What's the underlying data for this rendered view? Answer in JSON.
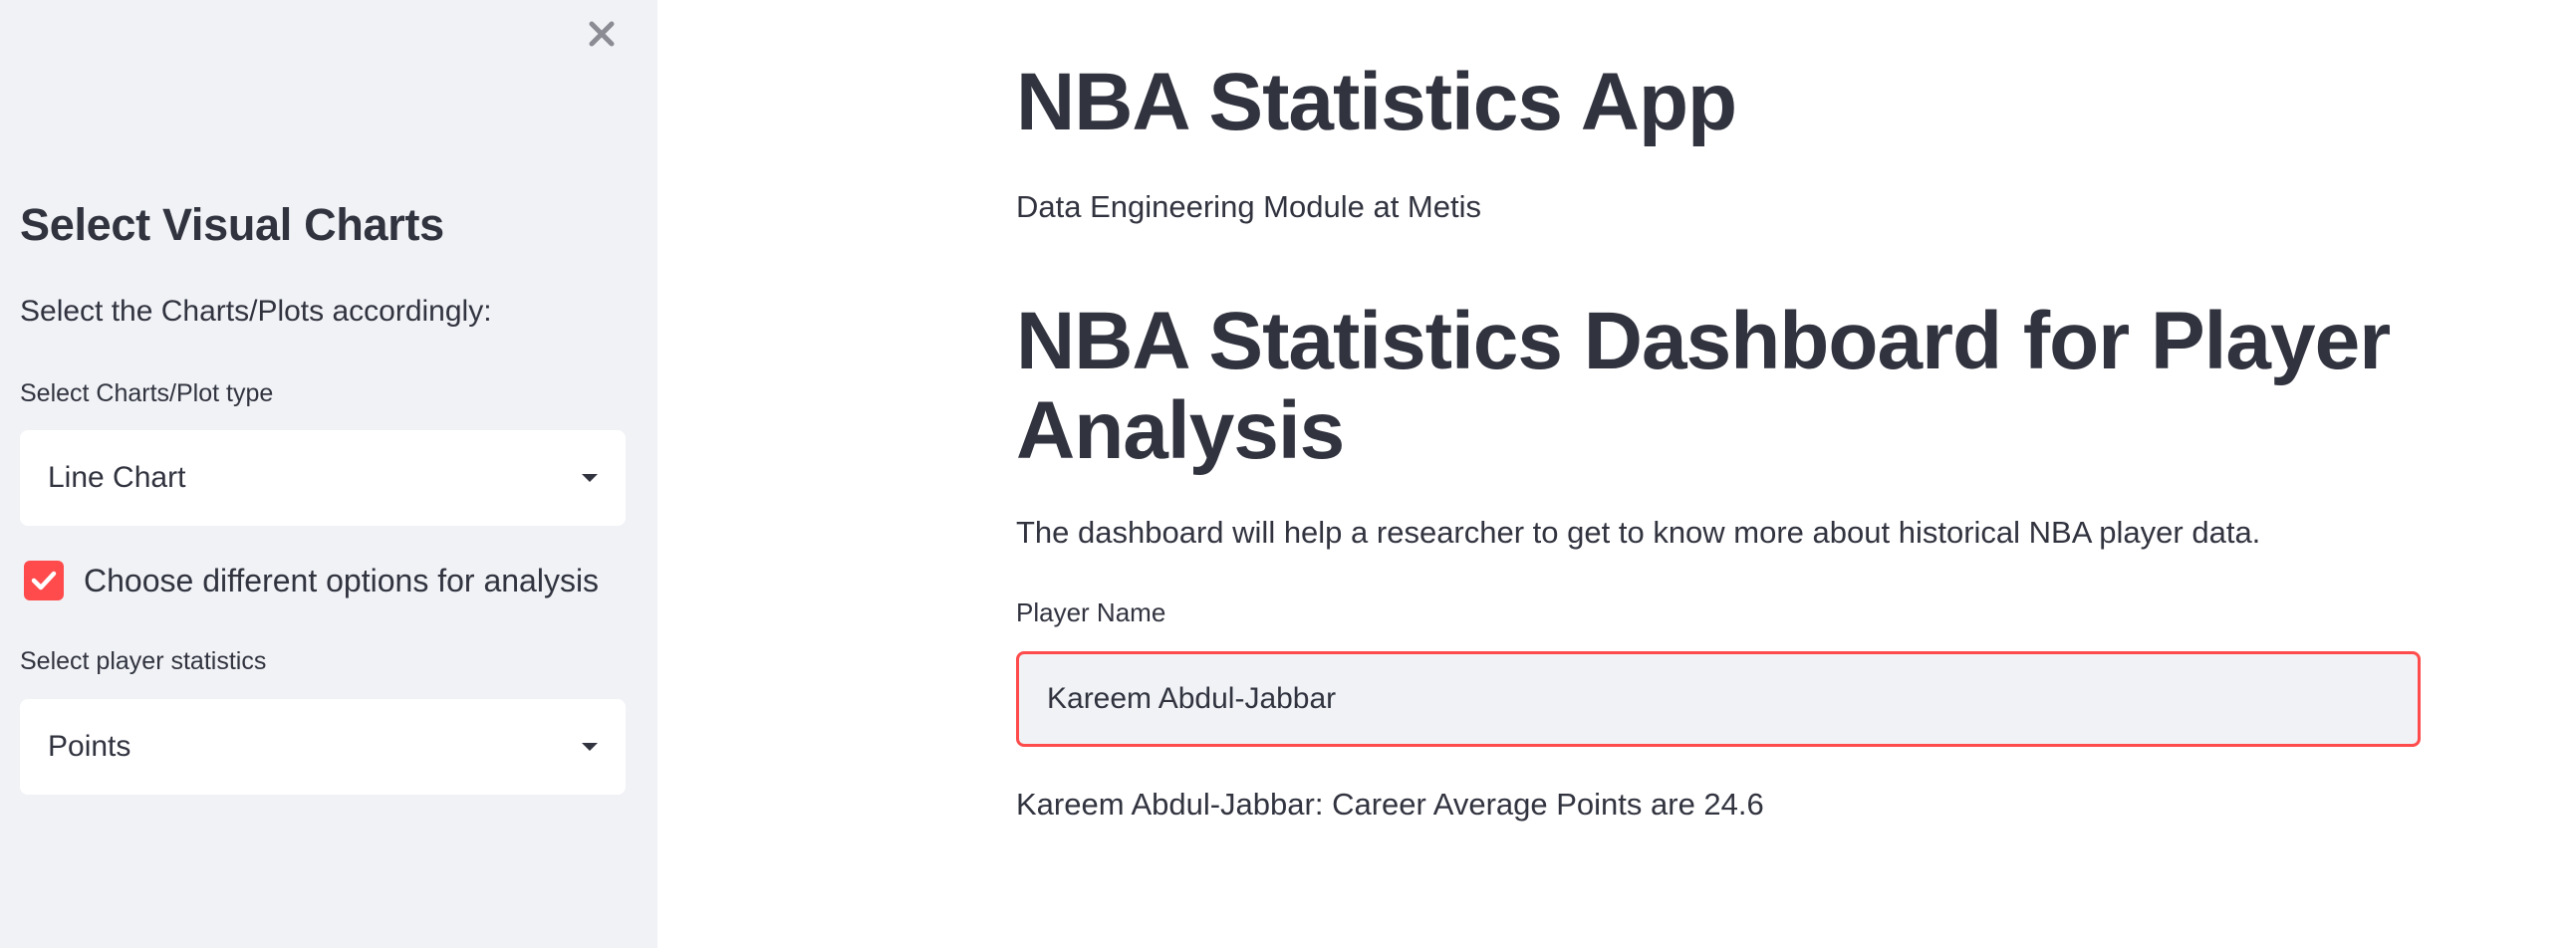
{
  "sidebar": {
    "heading": "Select Visual Charts",
    "description": "Select the Charts/Plots accordingly:",
    "chart_type": {
      "label": "Select Charts/Plot type",
      "value": "Line Chart"
    },
    "options_checkbox": {
      "label": "Choose different options for analysis",
      "checked": true
    },
    "player_stat": {
      "label": "Select player statistics",
      "value": "Points"
    },
    "close_icon": "close-icon"
  },
  "main": {
    "title": "NBA Statistics App",
    "subtitle": "Data Engineering Module at Metis",
    "dashboard_title": "NBA Statistics Dashboard for Player Analysis",
    "dashboard_description": "The dashboard will help a researcher to get to know more about historical NBA player data.",
    "player_input": {
      "label": "Player Name",
      "value": "Kareem Abdul-Jabbar"
    },
    "result": "Kareem Abdul-Jabbar: Career Average Points are 24.6"
  },
  "colors": {
    "accent": "#ff4b4b",
    "sidebar_bg": "#f0f2f6",
    "text": "#31333f"
  }
}
